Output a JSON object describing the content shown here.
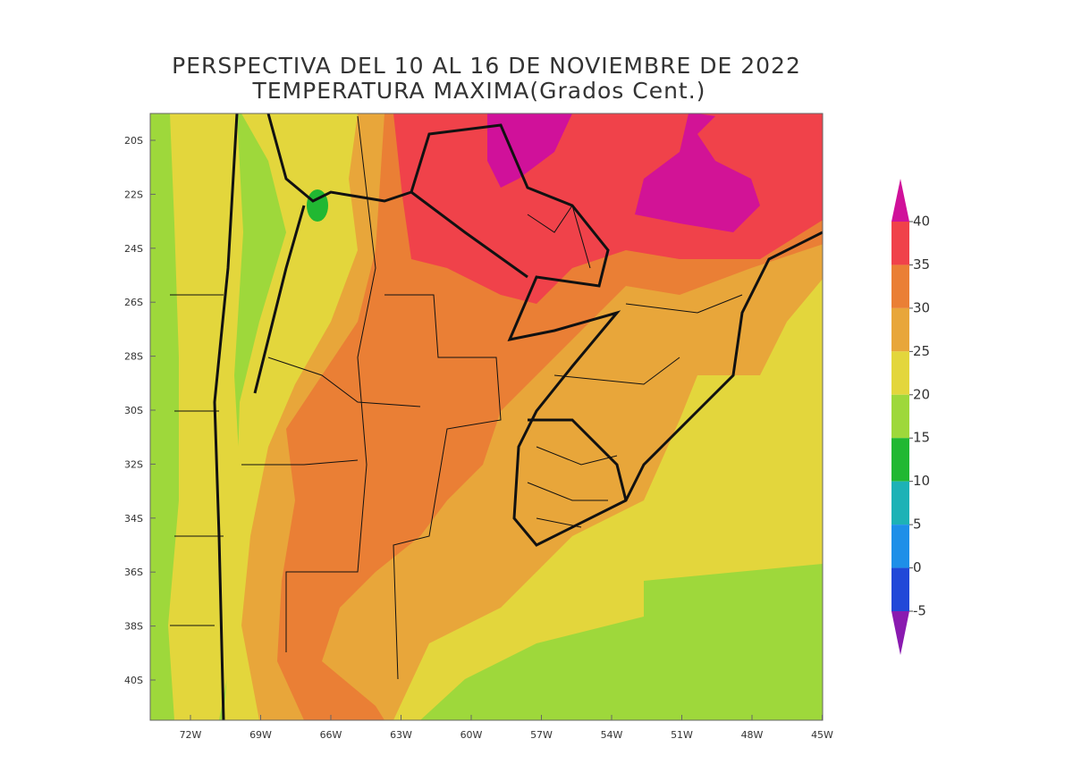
{
  "title": [
    "PERSPECTIVA DEL 10 AL 16 DE NOVIEMBRE DE 2022",
    "TEMPERATURA MAXIMA(Grados Cent.)"
  ],
  "lat_labels": [
    "20S",
    "22S",
    "24S",
    "26S",
    "28S",
    "30S",
    "32S",
    "34S",
    "36S",
    "38S",
    "40S"
  ],
  "lon_labels": [
    "72W",
    "69W",
    "66W",
    "63W",
    "60W",
    "57W",
    "54W",
    "51W",
    "48W",
    "45W"
  ],
  "colorbar": {
    "levels": [
      40,
      35,
      30,
      25,
      20,
      15,
      10,
      5,
      0,
      -5
    ],
    "colors": [
      "#d0119a",
      "#f0424a",
      "#ea7f35",
      "#e8a63a",
      "#e3d63c",
      "#9ed83b",
      "#21b832",
      "#1db2b6",
      "#1e8fe8",
      "#2148d8",
      "#8a1ab0"
    ]
  }
}
